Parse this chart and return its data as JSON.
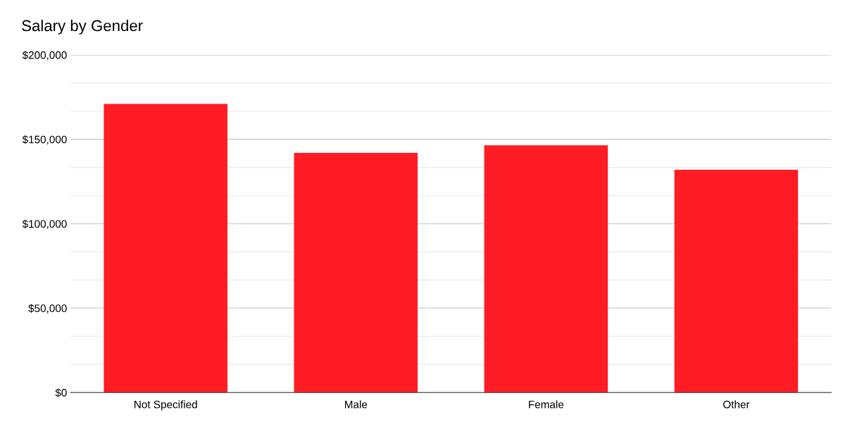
{
  "chart_data": {
    "type": "bar",
    "title": "Salary by Gender",
    "categories": [
      "Not Specified",
      "Male",
      "Female",
      "Other"
    ],
    "values": [
      171000,
      142000,
      146500,
      132000
    ],
    "color": "#ff1c24",
    "ylim": [
      0,
      200000
    ],
    "yticks": [
      {
        "value": 0,
        "label": "$0"
      },
      {
        "value": 16667,
        "label": null
      },
      {
        "value": 33333,
        "label": null
      },
      {
        "value": 50000,
        "label": "$50,000"
      },
      {
        "value": 66667,
        "label": null
      },
      {
        "value": 83333,
        "label": null
      },
      {
        "value": 100000,
        "label": "$100,000"
      },
      {
        "value": 116667,
        "label": null
      },
      {
        "value": 133333,
        "label": null
      },
      {
        "value": 150000,
        "label": "$150,000"
      },
      {
        "value": 166667,
        "label": null
      },
      {
        "value": 183333,
        "label": null
      },
      {
        "value": 200000,
        "label": "$200,000"
      }
    ],
    "grid": "y"
  }
}
